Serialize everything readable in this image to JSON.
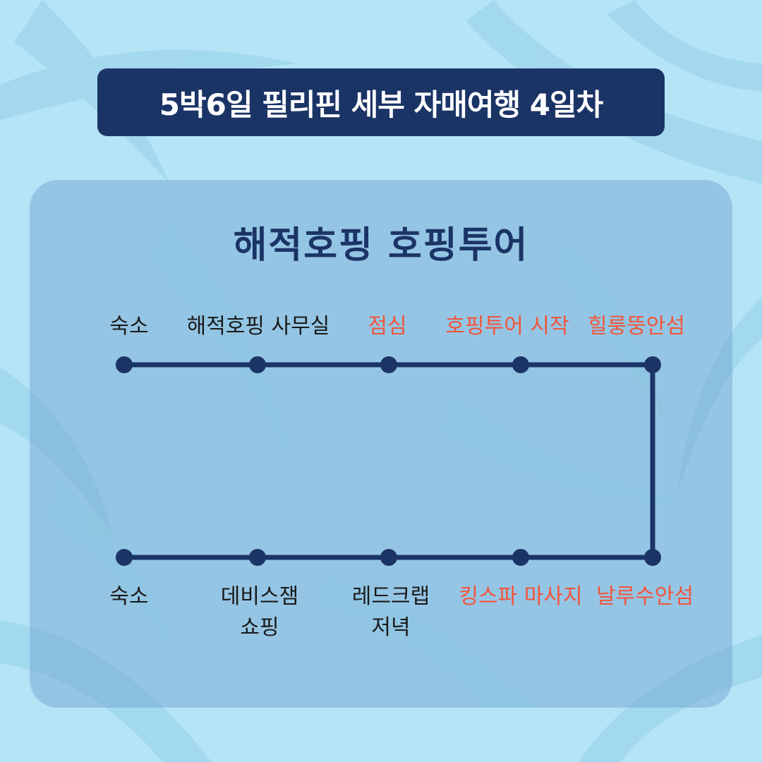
{
  "header": {
    "title": "5박6일 필리핀 세부 자매여행 4일차"
  },
  "panel": {
    "subtitle": "해적호핑 호핑투어"
  },
  "colors": {
    "background": "#b5e4f7",
    "title_bar": "#1b3466",
    "route_line": "#1b3466",
    "highlight_text": "#f2553a",
    "normal_text": "#1a1a1a"
  },
  "route": {
    "top_row": [
      {
        "label": "숙소",
        "color": "black"
      },
      {
        "label": "해적호핑 사무실",
        "color": "black"
      },
      {
        "label": "점심",
        "color": "red"
      },
      {
        "label": "호핑투어 시작",
        "color": "red"
      },
      {
        "label": "힐룽뚱안섬",
        "color": "red"
      }
    ],
    "bottom_row": [
      {
        "label": "숙소",
        "color": "black"
      },
      {
        "label_line1": "데비스잼",
        "label_line2": "쇼핑",
        "color": "black"
      },
      {
        "label_line1": "레드크랩",
        "label_line2": "저녁",
        "color": "black"
      },
      {
        "label": "킹스파 마사지",
        "color": "red"
      },
      {
        "label": "날루수안섬",
        "color": "red"
      }
    ]
  }
}
